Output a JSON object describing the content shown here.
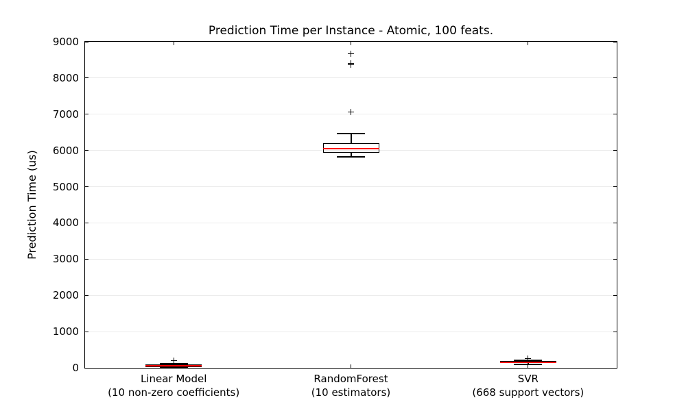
{
  "chart_data": {
    "type": "box",
    "title": "Prediction Time per Instance - Atomic, 100 feats.",
    "xlabel": "",
    "ylabel": "Prediction Time (us)",
    "ylim": [
      0,
      9000
    ],
    "yticks": [
      0,
      1000,
      2000,
      3000,
      4000,
      5000,
      6000,
      7000,
      8000,
      9000
    ],
    "grid": {
      "axis": "y",
      "style": "solid",
      "color": "#ebebeb"
    },
    "tick_direction": "in",
    "categories": [
      "Linear Model (10 non-zero coefficients)",
      "RandomForest (10 estimators)",
      "SVR (668 support vectors)"
    ],
    "series": [
      {
        "name": "Linear Model",
        "sublabel": "(10 non-zero coefficients)",
        "whisker_low": 10,
        "q1": 30,
        "median": 55,
        "q3": 90,
        "whisker_high": 120,
        "outliers": [
          200
        ]
      },
      {
        "name": "RandomForest",
        "sublabel": "(10 estimators)",
        "whisker_low": 5820,
        "q1": 5930,
        "median": 6050,
        "q3": 6200,
        "whisker_high": 6460,
        "outliers": [
          7060,
          8370,
          8400,
          8660
        ]
      },
      {
        "name": "SVR",
        "sublabel": "(668 support vectors)",
        "whisker_low": 95,
        "q1": 125,
        "median": 155,
        "q3": 190,
        "whisker_high": 215,
        "outliers": [
          250
        ]
      }
    ],
    "colors": {
      "median": "#ff0000",
      "box_edge": "#000000",
      "whisker": "#000000",
      "cap": "#000000",
      "outlier": "#000000",
      "grid": "#ebebeb",
      "frame": "#000000",
      "background": "#ffffff"
    }
  }
}
